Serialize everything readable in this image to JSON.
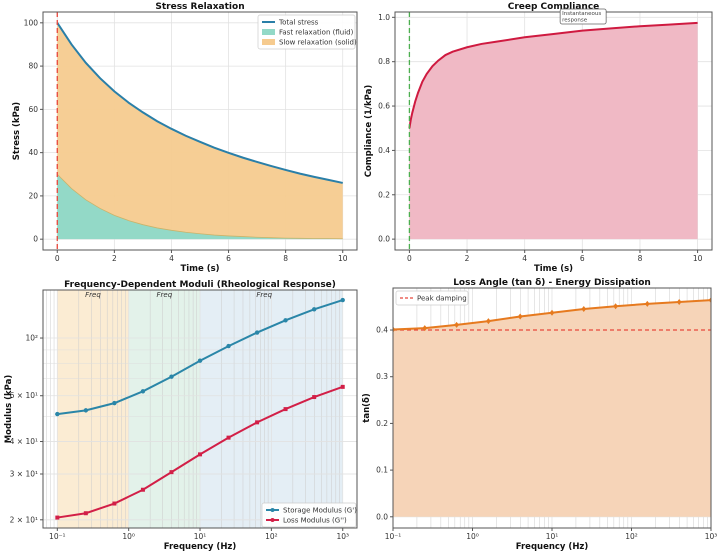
{
  "chart_data": [
    {
      "id": "stress",
      "type": "area",
      "title": "Stress Relaxation",
      "xlabel": "Time (s)",
      "ylabel": "Stress (kPa)",
      "xscale": "linear",
      "yscale": "linear",
      "xlim": [
        -0.5,
        10.5
      ],
      "ylim": [
        -5,
        105
      ],
      "xticks": [
        0,
        2,
        4,
        6,
        8,
        10
      ],
      "xtick_labels": [
        "0",
        "2",
        "4",
        "6",
        "8",
        "10"
      ],
      "yticks": [
        0,
        20,
        40,
        60,
        80,
        100
      ],
      "ytick_labels": [
        "0",
        "20",
        "40",
        "60",
        "80",
        "100"
      ],
      "grid": true,
      "legend": "top-right",
      "x": [
        0,
        0.5,
        1,
        1.5,
        2,
        2.5,
        3,
        3.5,
        4,
        4.5,
        5,
        5.5,
        6,
        6.5,
        7,
        7.5,
        8,
        8.5,
        9,
        9.5,
        10
      ],
      "series": [
        {
          "name": "Total stress",
          "kind": "line",
          "color": "#2a7fa8",
          "values": [
            100,
            90.0,
            81.5,
            74.4,
            68.3,
            63.1,
            58.6,
            54.5,
            51.0,
            47.8,
            45.0,
            42.3,
            39.9,
            37.7,
            35.7,
            33.8,
            32.0,
            30.3,
            28.8,
            27.4,
            26.0
          ]
        },
        {
          "name": "Fast relaxation (fluid)",
          "kind": "fill",
          "color": "#93d9c7",
          "values": [
            30,
            23.4,
            18.2,
            14.2,
            11.0,
            8.6,
            6.7,
            5.2,
            4.1,
            3.2,
            2.5,
            1.9,
            1.5,
            1.2,
            0.9,
            0.7,
            0.5,
            0.4,
            0.3,
            0.3,
            0.2
          ]
        },
        {
          "name": "Slow relaxation (solid)",
          "kind": "fill-stacked",
          "color": "#f6cb8f",
          "values": [
            70,
            66.6,
            63.3,
            60.2,
            57.3,
            54.5,
            51.9,
            49.3,
            46.9,
            44.6,
            42.5,
            40.4,
            38.4,
            36.5,
            34.8,
            33.1,
            31.5,
            29.9,
            28.5,
            27.1,
            25.8
          ]
        }
      ],
      "vline": {
        "x": 0,
        "color": "#e8473c",
        "style": "dashed"
      }
    },
    {
      "id": "creep",
      "type": "area",
      "title": "Creep Compliance",
      "xlabel": "Time (s)",
      "ylabel": "Compliance (1/kPa)",
      "xscale": "linear",
      "yscale": "linear",
      "xlim": [
        -0.5,
        10.5
      ],
      "ylim": [
        -0.049,
        1.024
      ],
      "xticks": [
        0,
        2,
        4,
        6,
        8,
        10
      ],
      "xtick_labels": [
        "0",
        "2",
        "4",
        "6",
        "8",
        "10"
      ],
      "yticks": [
        0,
        0.2,
        0.4,
        0.6,
        0.8,
        1.0
      ],
      "ytick_labels": [
        "0.0",
        "0.2",
        "0.4",
        "0.6",
        "0.8",
        "1.0"
      ],
      "grid": true,
      "x": [
        0,
        0.05,
        0.1,
        0.2,
        0.3,
        0.45,
        0.6,
        0.8,
        1,
        1.25,
        1.5,
        2,
        2.5,
        3,
        4,
        5,
        6,
        7,
        8,
        9,
        10
      ],
      "series": [
        {
          "name": "",
          "kind": "line-fill",
          "color": "#cf1a40",
          "fill": "#f0b9c5",
          "values": [
            0.5,
            0.54,
            0.57,
            0.62,
            0.66,
            0.71,
            0.745,
            0.78,
            0.805,
            0.83,
            0.845,
            0.865,
            0.88,
            0.89,
            0.91,
            0.925,
            0.94,
            0.95,
            0.96,
            0.967,
            0.975
          ]
        }
      ],
      "vline": {
        "x": 0,
        "color": "#4caf50",
        "style": "dashed"
      },
      "annotation": {
        "lines": [
          "Instantaneous",
          "response"
        ],
        "x": 5.3,
        "y": 1.0
      }
    },
    {
      "id": "moduli",
      "type": "line",
      "title": "Frequency-Dependent Moduli (Rheological Response)",
      "xlabel": "Frequency (Hz)",
      "ylabel": "Modulus (kPa)",
      "xscale": "log",
      "yscale": "log",
      "xlim": [
        0.063,
        1585
      ],
      "ylim": [
        18.6,
        153
      ],
      "xticks": [
        0.1,
        1,
        10,
        100,
        1000
      ],
      "xtick_labels": [
        "10⁻¹",
        "10⁰",
        "10¹",
        "10²",
        "10³"
      ],
      "yticks": [
        20,
        30,
        40,
        60,
        100
      ],
      "ytick_labels": [
        "2 × 10¹",
        "3 × 10¹",
        "4 × 10¹",
        "6 × 10¹",
        "10²"
      ],
      "grid": true,
      "legend": "bottom-right",
      "bands": [
        {
          "from": 0.1,
          "to": 1,
          "color": "#fbecd3",
          "label": "Freq"
        },
        {
          "from": 1,
          "to": 10,
          "color": "#e3f2ea",
          "label": "Freq"
        },
        {
          "from": 10,
          "to": 1000,
          "color": "#e4eef5",
          "label": "Freq"
        }
      ],
      "x": [
        0.1,
        0.251,
        0.631,
        1.585,
        3.98,
        10,
        25.1,
        63.1,
        158,
        398,
        1000
      ],
      "series": [
        {
          "name": "Storage Modulus (G')",
          "kind": "line",
          "marker": "circle",
          "color": "#2a86a8",
          "values": [
            51.0,
            52.7,
            56.2,
            62.4,
            71.0,
            81.8,
            93.1,
            105,
            117,
            129,
            140
          ]
        },
        {
          "name": "Loss Modulus (G'')",
          "kind": "line",
          "marker": "square",
          "color": "#d21f47",
          "values": [
            20.4,
            21.2,
            23.1,
            26.1,
            30.5,
            35.7,
            41.4,
            47.4,
            53.3,
            59.3,
            64.9
          ]
        }
      ]
    },
    {
      "id": "tandelta",
      "type": "area",
      "title": "Loss Angle (tan δ) - Energy Dissipation",
      "xlabel": "Frequency (Hz)",
      "ylabel": "tan(δ)",
      "xscale": "log",
      "yscale": "linear",
      "xlim": [
        0.1,
        1000
      ],
      "ylim": [
        -0.024,
        0.49
      ],
      "xticks": [
        0.1,
        1,
        10,
        100,
        1000
      ],
      "xtick_labels": [
        "10⁻¹",
        "10⁰",
        "10¹",
        "10²",
        "10³"
      ],
      "yticks": [
        0,
        0.1,
        0.2,
        0.3,
        0.4
      ],
      "ytick_labels": [
        "0.0",
        "0.1",
        "0.2",
        "0.3",
        "0.4"
      ],
      "grid": true,
      "legend": "top-left",
      "x": [
        0.1,
        0.251,
        0.631,
        1.585,
        3.98,
        10,
        25.1,
        63.1,
        158,
        398,
        1000
      ],
      "series": [
        {
          "name": "",
          "kind": "line-fill",
          "marker": "diamond",
          "color": "#e67a1f",
          "fill": "#f6d4b8",
          "values": [
            0.401,
            0.404,
            0.411,
            0.419,
            0.429,
            0.437,
            0.445,
            0.451,
            0.456,
            0.46,
            0.464
          ]
        }
      ],
      "hline": {
        "y": 0.4,
        "name": "Peak damping",
        "color": "#e8473c",
        "style": "dashed"
      }
    }
  ]
}
